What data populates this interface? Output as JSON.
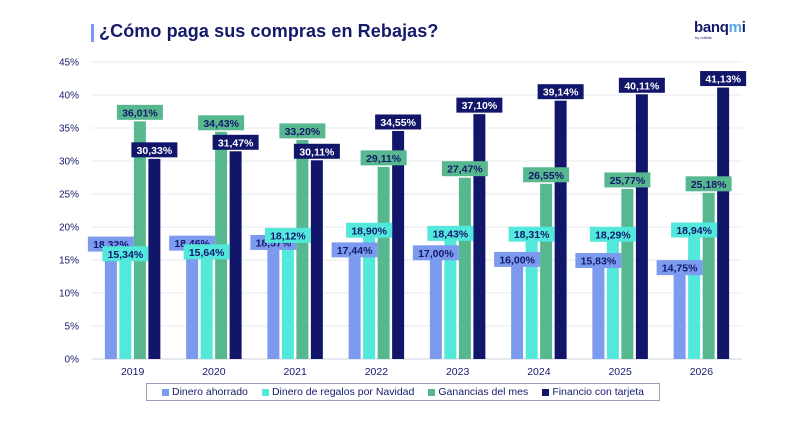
{
  "header": {
    "title": "¿Cómo paga sus compras en Rebajas?",
    "logo_main": "banqmi",
    "logo_sub": "by cofidis"
  },
  "chart_data": {
    "type": "bar",
    "title": "¿Cómo paga sus compras en Rebajas?",
    "xlabel": "",
    "ylabel": "",
    "ylim": [
      0,
      45
    ],
    "yticks": [
      0,
      5,
      10,
      15,
      20,
      25,
      30,
      35,
      40,
      45
    ],
    "ytick_labels": [
      "0%",
      "5%",
      "10%",
      "15%",
      "20%",
      "25%",
      "30%",
      "35%",
      "40%",
      "45%"
    ],
    "grid": true,
    "legend_position": "bottom",
    "categories": [
      "2019",
      "2020",
      "2021",
      "2022",
      "2023",
      "2024",
      "2025",
      "2026"
    ],
    "series": [
      {
        "name": "Dinero ahorrado",
        "color": "#7c9bef",
        "label_text_color": "#14196b",
        "values": [
          18.32,
          18.46,
          18.57,
          17.44,
          17.0,
          16.0,
          15.83,
          14.75
        ],
        "labels": [
          "18,32%",
          "18,46%",
          "18,57%",
          "17,44%",
          "17,00%",
          "16,00%",
          "15,83%",
          "14,75%"
        ]
      },
      {
        "name": "Dinero de regalos por Navidad",
        "color": "#52e8dc",
        "label_text_color": "#14196b",
        "values": [
          15.34,
          15.64,
          18.12,
          18.9,
          18.43,
          18.31,
          18.29,
          18.94
        ],
        "labels": [
          "15,34%",
          "15,64%",
          "18,12%",
          "18,90%",
          "18,43%",
          "18,31%",
          "18,29%",
          "18,94%"
        ]
      },
      {
        "name": "Ganancias del mes",
        "color": "#57b890",
        "label_text_color": "#14196b",
        "values": [
          36.01,
          34.43,
          33.2,
          29.11,
          27.47,
          26.55,
          25.77,
          25.18
        ],
        "labels": [
          "36,01%",
          "34,43%",
          "33,20%",
          "29,11%",
          "27,47%",
          "26,55%",
          "25,77%",
          "25,18%"
        ]
      },
      {
        "name": "Financio con tarjeta",
        "color": "#12166b",
        "label_text_color": "#ffffff",
        "values": [
          30.33,
          31.47,
          30.11,
          34.55,
          37.1,
          39.14,
          40.11,
          41.13
        ],
        "labels": [
          "30,33%",
          "31,47%",
          "30,11%",
          "34,55%",
          "37,10%",
          "39,14%",
          "40,11%",
          "41,13%"
        ]
      }
    ]
  }
}
